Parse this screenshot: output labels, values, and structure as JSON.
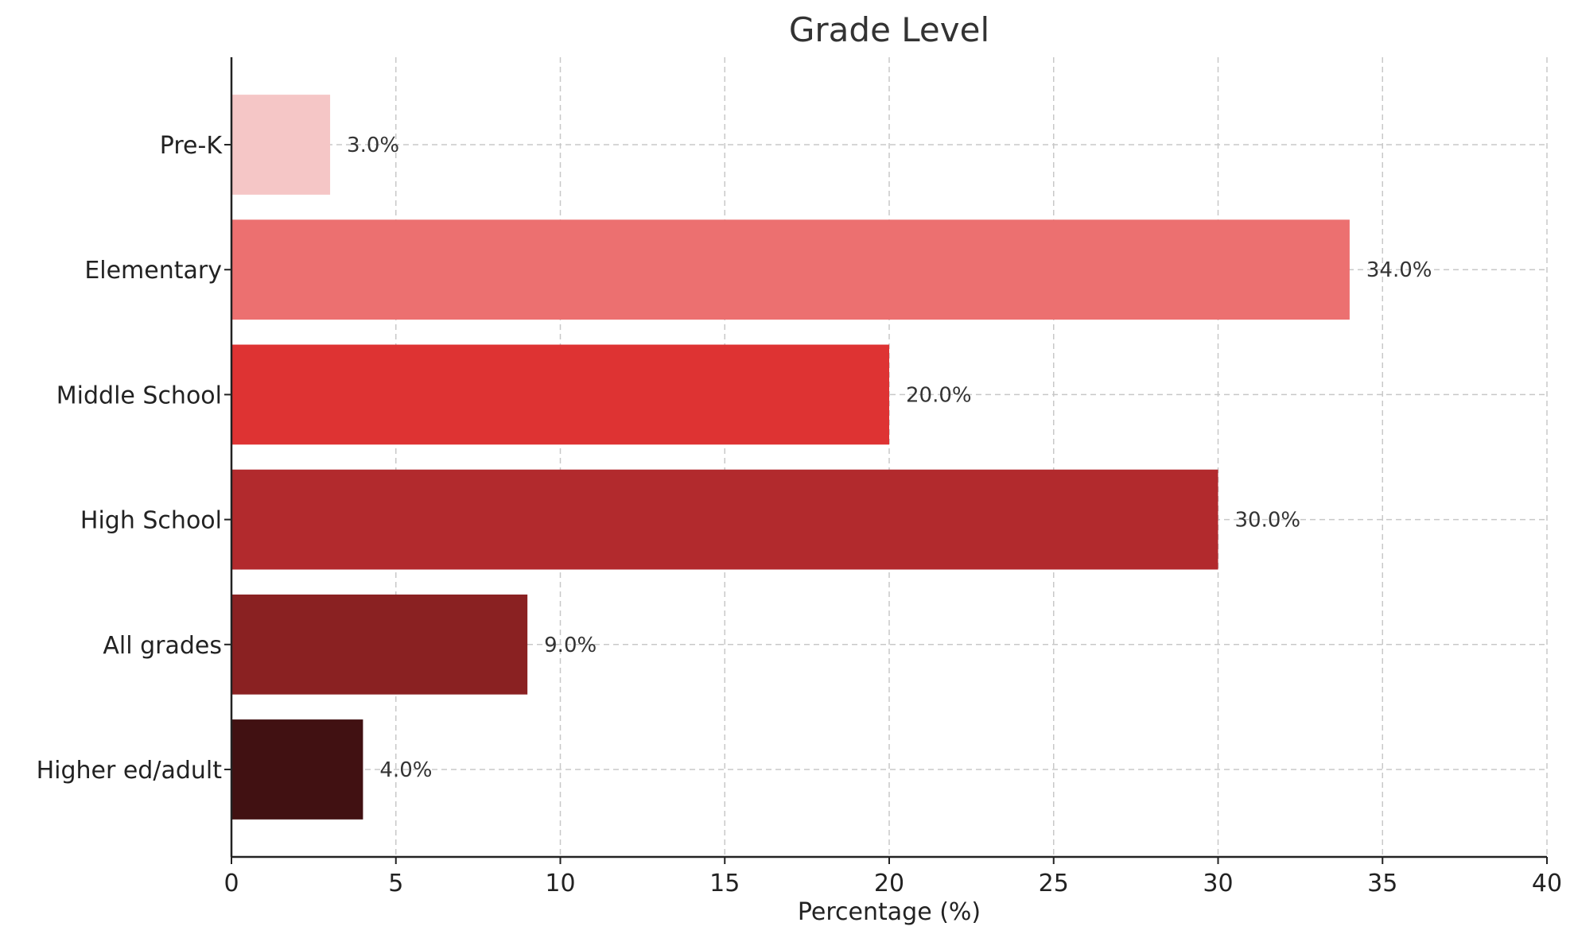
{
  "chart_data": {
    "type": "bar",
    "orientation": "horizontal",
    "title": "Grade Level",
    "xlabel": "Percentage (%)",
    "ylabel": "",
    "xlim": [
      0,
      40
    ],
    "xticks": [
      0,
      5,
      10,
      15,
      20,
      25,
      30,
      35,
      40
    ],
    "grid": true,
    "categories": [
      "Pre-K",
      "Elementary",
      "Middle School",
      "High School",
      "All grades",
      "Higher ed/adult"
    ],
    "values": [
      3.0,
      34.0,
      20.0,
      30.0,
      9.0,
      4.0
    ],
    "data_labels": [
      "3.0%",
      "34.0%",
      "20.0%",
      "30.0%",
      "9.0%",
      "4.0%"
    ],
    "colors": [
      "#f5c6c6",
      "#ec7070",
      "#de3333",
      "#b22a2d",
      "#8a2122",
      "#411112"
    ]
  }
}
